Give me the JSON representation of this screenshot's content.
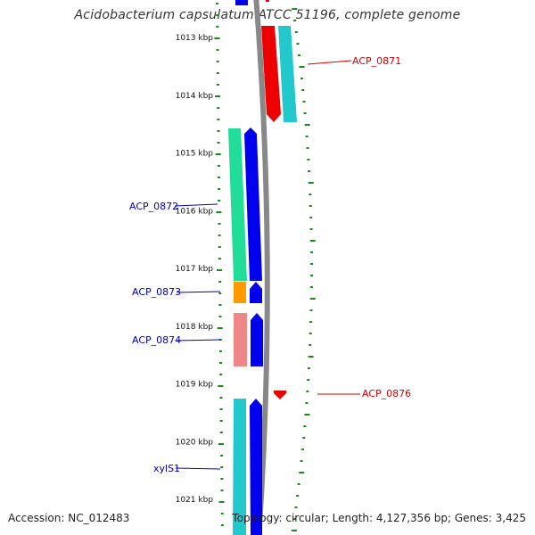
{
  "title": "Acidobacterium capsulatum ATCC 51196, complete genome",
  "footer": {
    "accession": "Accession: NC_012483",
    "summary": "Topology: circular; Length: 4,127,356 bp; Genes: 3,425"
  },
  "ruler": {
    "unit": "kbp",
    "labels": [
      "1013 kbp",
      "1014 kbp",
      "1015 kbp",
      "1016 kbp",
      "1017 kbp",
      "1018 kbp",
      "1019 kbp",
      "1020 kbp",
      "1021 kbp"
    ],
    "tick_color": "#1a8a1a"
  },
  "colors": {
    "forward_label": "#d40000",
    "reverse_label": "#0000bb",
    "backbone": "#888888",
    "cds_forward": "#ee0000",
    "cds_reverse": "#0000ee",
    "cog_cyan": "#22c8cc",
    "cog_green": "#22dd99",
    "cog_orange": "#ff9900",
    "cog_pink": "#ee8888"
  },
  "genes": [
    {
      "label": "ACP_0871",
      "strand": "forward"
    },
    {
      "label": "ACP_0872",
      "strand": "reverse"
    },
    {
      "label": "ACP_0873",
      "strand": "reverse"
    },
    {
      "label": "ACP_0874",
      "strand": "reverse"
    },
    {
      "label": "ACP_0876",
      "strand": "forward"
    },
    {
      "label": "xylS1",
      "strand": "reverse"
    }
  ]
}
